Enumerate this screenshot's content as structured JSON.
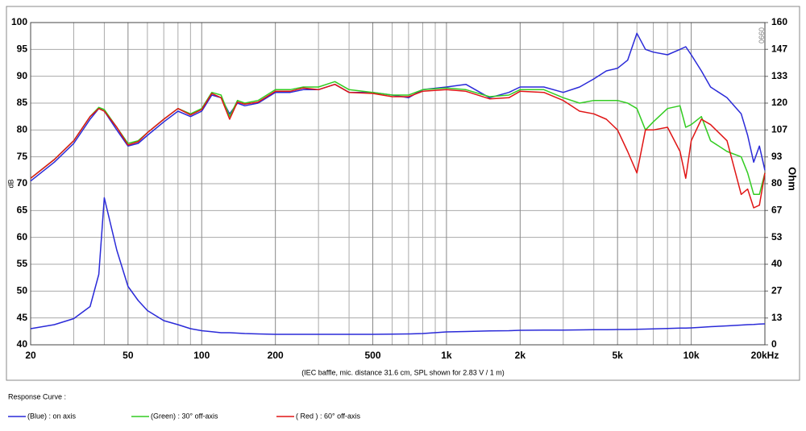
{
  "chart_data": {
    "type": "line",
    "note": "(IEC baffle, mic. distance 31.6 cm, SPL shown for 2.83 V / 1 m)",
    "ylabel": "dB",
    "y2label": "Ohm",
    "watermark": "0990",
    "legend_title": "Response Curve :",
    "log_x": true,
    "grid": true,
    "xlim": [
      20,
      20000
    ],
    "xticks": [
      20,
      50,
      100,
      200,
      500,
      {
        "value": 1000,
        "label": "1k"
      },
      {
        "value": 2000,
        "label": "2k"
      },
      {
        "value": 5000,
        "label": "5k"
      },
      {
        "value": 10000,
        "label": "10k"
      },
      {
        "value": 20000,
        "label": "20kHz"
      }
    ],
    "xminor": [
      30,
      40,
      60,
      70,
      80,
      90,
      300,
      400,
      600,
      700,
      800,
      900,
      3000,
      4000,
      6000,
      7000,
      8000,
      9000
    ],
    "ylim": [
      40,
      100
    ],
    "yticks": [
      40,
      45,
      50,
      55,
      60,
      65,
      70,
      75,
      80,
      85,
      90,
      95,
      100
    ],
    "y2lim": [
      0,
      160
    ],
    "y2ticks": [
      0,
      {
        "value": 13.3,
        "label": "13"
      },
      {
        "value": 26.7,
        "label": "27"
      },
      40,
      {
        "value": 53.3,
        "label": "53"
      },
      {
        "value": 66.7,
        "label": "67"
      },
      80,
      {
        "value": 93.3,
        "label": "93"
      },
      {
        "value": 106.7,
        "label": "107"
      },
      120,
      {
        "value": 133.3,
        "label": "133"
      },
      {
        "value": 146.7,
        "label": "147"
      },
      160
    ],
    "x": [
      20,
      25,
      30,
      35,
      38,
      40,
      45,
      50,
      55,
      60,
      70,
      80,
      90,
      100,
      110,
      120,
      130,
      140,
      150,
      170,
      200,
      230,
      260,
      300,
      350,
      400,
      500,
      600,
      700,
      800,
      1000,
      1200,
      1500,
      1800,
      2000,
      2500,
      3000,
      3500,
      4000,
      4500,
      5000,
      5500,
      6000,
      6500,
      7000,
      8000,
      9000,
      9500,
      10000,
      11000,
      12000,
      14000,
      16000,
      17000,
      18000,
      19000,
      20000
    ],
    "series": [
      {
        "name": "(Blue)  : on axis",
        "color": "#2a2ad8",
        "values": [
          70.5,
          74,
          77.5,
          82,
          84,
          83.5,
          80,
          77,
          77.5,
          79,
          81.5,
          83.5,
          82.5,
          83.5,
          86.5,
          86,
          83,
          85,
          84.5,
          85,
          87,
          87,
          87.5,
          87.5,
          88.5,
          87,
          87,
          86.5,
          86,
          87.5,
          88,
          88.5,
          86,
          87,
          88,
          88,
          87,
          88,
          89.5,
          91,
          91.5,
          93,
          98,
          95,
          94.5,
          94,
          95,
          95.5,
          94,
          91,
          88,
          86,
          83,
          79,
          74,
          77,
          72.5
        ]
      },
      {
        "name": "(Green) : 30° off-axis",
        "color": "#33cc22",
        "values": [
          71,
          74.5,
          78,
          82.5,
          84.2,
          83.8,
          80.5,
          77.5,
          78,
          79.5,
          82,
          84,
          83,
          84,
          87,
          86.5,
          82.5,
          85.5,
          85,
          85.5,
          87.5,
          87.5,
          88,
          88,
          89,
          87.5,
          87,
          86.5,
          86.5,
          87.5,
          87.8,
          87.5,
          86.2,
          86.5,
          87.5,
          87.5,
          86,
          85,
          85.5,
          85.5,
          85.5,
          85,
          84,
          80,
          81.5,
          84,
          84.5,
          80.5,
          81,
          82.5,
          78,
          76,
          75,
          72,
          68,
          68,
          72
        ]
      },
      {
        "name": "( Red ) : 60° off-axis",
        "color": "#e01515",
        "values": [
          71,
          74.5,
          78,
          82.5,
          84,
          83.5,
          80.5,
          77.2,
          77.8,
          79.5,
          82,
          84,
          82.8,
          83.8,
          86.8,
          86,
          82,
          85.2,
          84.8,
          85.2,
          87.2,
          87.2,
          87.8,
          87.5,
          88.5,
          87,
          86.8,
          86.2,
          86.2,
          87.2,
          87.5,
          87.2,
          85.8,
          86,
          87.2,
          87,
          85.5,
          83.5,
          83,
          82,
          80,
          76,
          72,
          80,
          80,
          80.5,
          76,
          71,
          78,
          82,
          81,
          78,
          68,
          69,
          65.5,
          66,
          72
        ]
      },
      {
        "axis": "y2",
        "color": "#2a2ad8",
        "values": [
          8,
          10,
          13,
          19,
          35,
          73,
          47,
          29,
          22,
          17,
          12,
          10,
          8,
          7,
          6.5,
          6,
          6,
          5.8,
          5.6,
          5.4,
          5.2,
          5.2,
          5.2,
          5.2,
          5.2,
          5.2,
          5.2,
          5.3,
          5.4,
          5.6,
          6.4,
          6.6,
          6.9,
          7,
          7.2,
          7.3,
          7.3,
          7.4,
          7.5,
          7.5,
          7.6,
          7.6,
          7.7,
          7.8,
          7.9,
          8.1,
          8.3,
          8.3,
          8.4,
          8.7,
          9,
          9.4,
          9.8,
          10,
          10.1,
          10.3,
          10.4
        ]
      }
    ]
  }
}
